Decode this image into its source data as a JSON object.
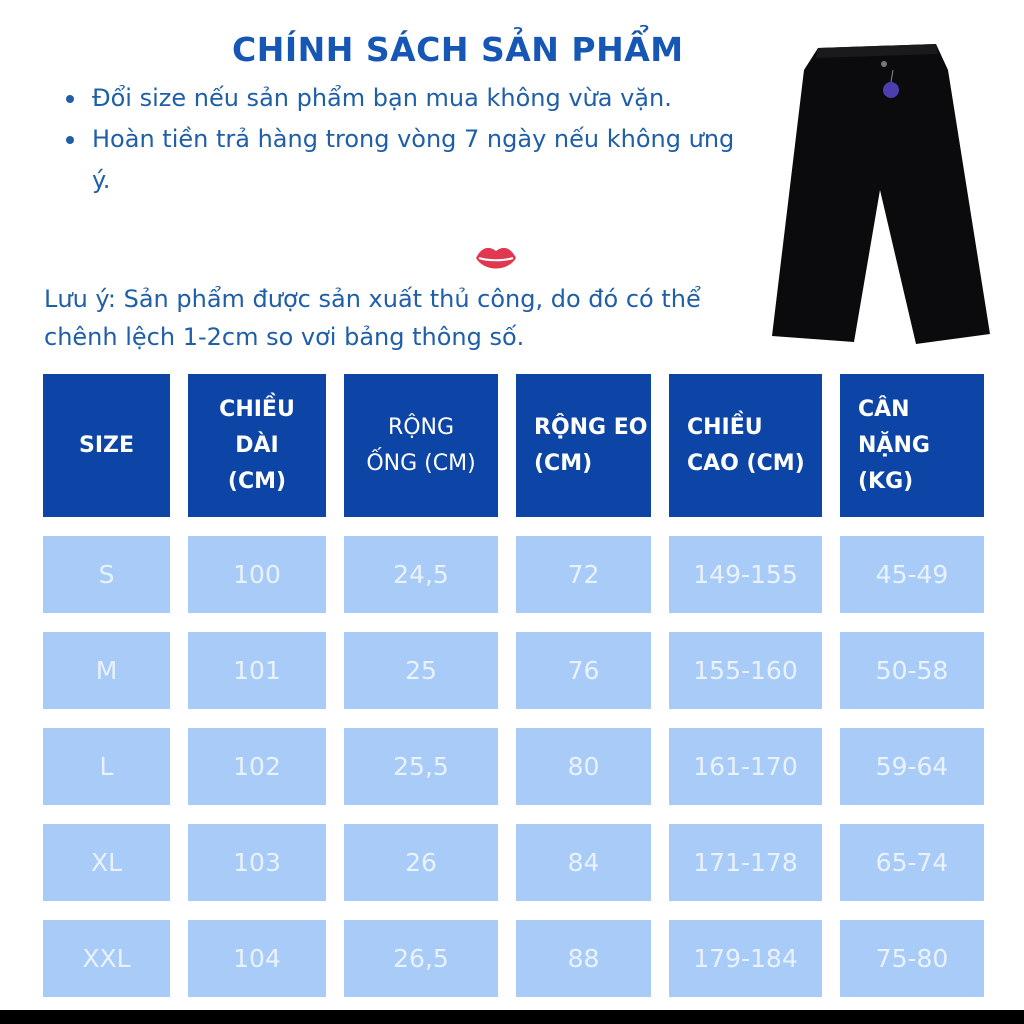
{
  "title": "CHÍNH SÁCH SẢN PHẨM",
  "policies": [
    "Đổi size  nếu sản phẩm bạn mua không vừa vặn.",
    "Hoàn tiền trả hàng trong vòng 7 ngày nếu không ưng ý."
  ],
  "note": "Lưu ý: Sản phẩm được sản xuất thủ công, do đó có thể chênh lệch 1-2cm so vơi bảng thông số.",
  "icons": {
    "lips": "lips-icon",
    "product": "black-wide-leg-pants-image"
  },
  "colors": {
    "title": "#1656b5",
    "text": "#1f5fa8",
    "header_bg": "#0c45a6",
    "cell_bg": "#a8ccf7",
    "cell_text": "#e9f2fd"
  },
  "table": {
    "headers": [
      "SIZE",
      "CHIỀU DÀI (CM)",
      "RỘNG ỐNG (CM)",
      "RỘNG EO (CM)",
      "CHIỀU CAO (CM)",
      "CÂN NẶNG (KG)"
    ],
    "rows": [
      [
        "S",
        "100",
        "24,5",
        "72",
        "149-155",
        "45-49"
      ],
      [
        "M",
        "101",
        "25",
        "76",
        "155-160",
        "50-58"
      ],
      [
        "L",
        "102",
        "25,5",
        "80",
        "161-170",
        "59-64"
      ],
      [
        "XL",
        "103",
        "26",
        "84",
        "171-178",
        "65-74"
      ],
      [
        "XXL",
        "104",
        "26,5",
        "88",
        "179-184",
        "75-80"
      ]
    ]
  }
}
